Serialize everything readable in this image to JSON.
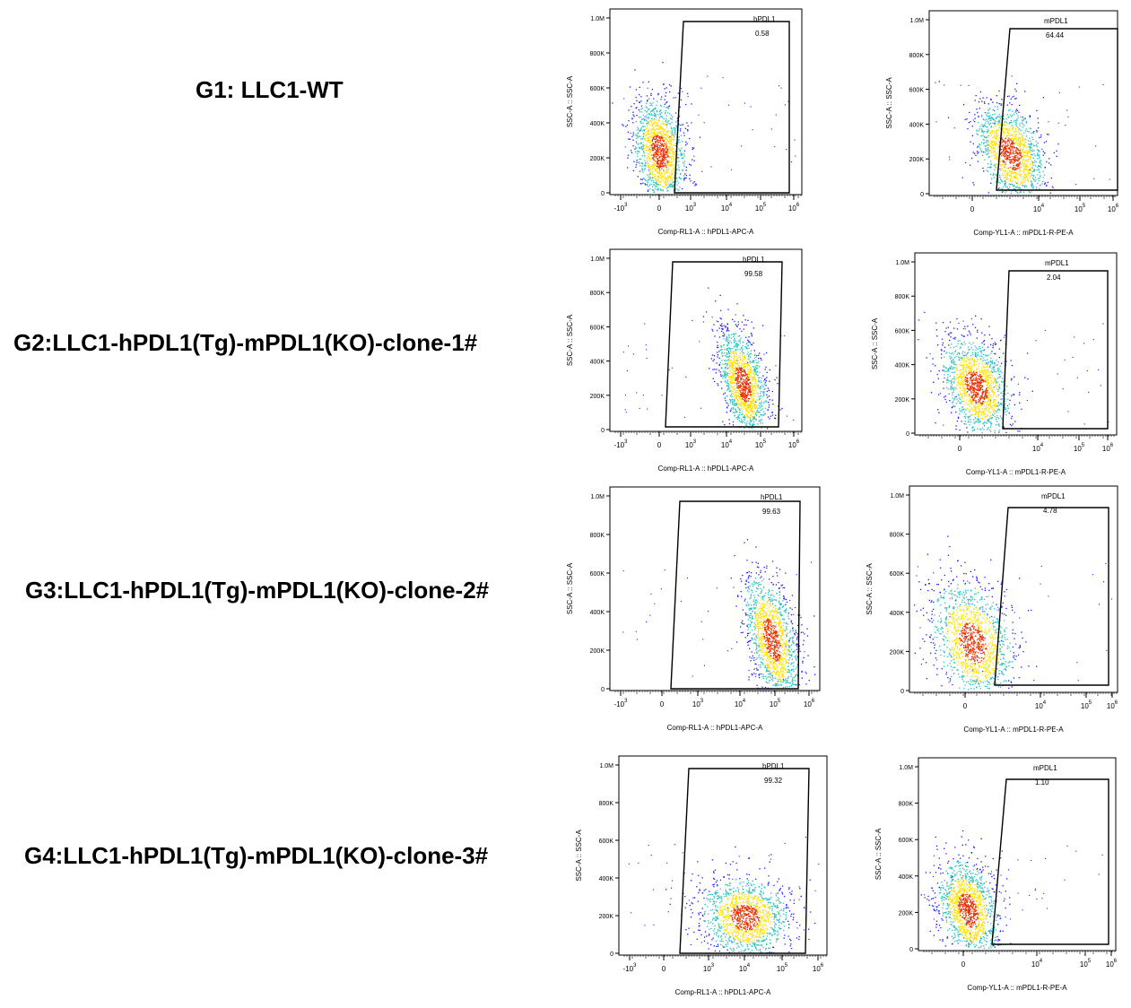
{
  "groups": [
    {
      "label": "G1:  LLC1-WT"
    },
    {
      "label": "G2:LLC1-hPDL1(Tg)-mPDL1(KO)-clone-1#"
    },
    {
      "label": "G3:LLC1-hPDL1(Tg)-mPDL1(KO)-clone-2#"
    },
    {
      "label": "G4:LLC1-hPDL1(Tg)-mPDL1(KO)-clone-3#"
    }
  ],
  "colors": {
    "low": "#1a1aff",
    "mid": "#22c0c0",
    "high": "#ffe000",
    "peak": "#e83000"
  },
  "chart_data": [
    {
      "type": "scatter",
      "group": "G1",
      "gate_name": "hPDL1",
      "gate_value": "0.58",
      "xlabel": "Comp-RL1-A :: hPDL1-APC-A",
      "ylabel": "SSC-A :: SSC-A",
      "yticks": [
        "0",
        "200K",
        "400K",
        "600K",
        "800K",
        "1.0M"
      ],
      "xticks": [
        {
          "b": "-10",
          "e": "3"
        },
        {
          "b": "0",
          "e": ""
        },
        {
          "b": "10",
          "e": "3"
        },
        {
          "b": "10",
          "e": "4"
        },
        {
          "b": "10",
          "e": "5"
        },
        {
          "b": "10",
          "e": "6"
        }
      ],
      "cluster": {
        "x_center": 0.2,
        "y_center": "230K",
        "spread": "low-events around 200K-600K SSC"
      }
    },
    {
      "type": "scatter",
      "group": "G1",
      "gate_name": "mPDL1",
      "gate_value": "64.44",
      "xlabel": "Comp-YL1-A :: mPDL1-R-PE-A",
      "ylabel": "SSC-A :: SSC-A",
      "yticks": [
        "0",
        "200K",
        "400K",
        "600K",
        "800K",
        "1.0M"
      ],
      "xticks": [
        {
          "b": "0",
          "e": ""
        },
        {
          "b": "10",
          "e": "4"
        },
        {
          "b": "10",
          "e": "5"
        },
        {
          "b": "10",
          "e": "6"
        }
      ],
      "cluster": {
        "x_center": "10^3.5",
        "y_center": "240K"
      }
    },
    {
      "type": "scatter",
      "group": "G2",
      "gate_name": "hPDL1",
      "gate_value": "99.58",
      "xlabel": "Comp-RL1-A :: hPDL1-APC-A",
      "ylabel": "SSC-A :: SSC-A",
      "yticks": [
        "0",
        "200K",
        "400K",
        "600K",
        "800K",
        "1.0M"
      ],
      "xticks": [
        {
          "b": "-10",
          "e": "3"
        },
        {
          "b": "0",
          "e": ""
        },
        {
          "b": "10",
          "e": "3"
        },
        {
          "b": "10",
          "e": "4"
        },
        {
          "b": "10",
          "e": "5"
        },
        {
          "b": "10",
          "e": "6"
        }
      ],
      "cluster": {
        "x_center": "10^4.8",
        "y_center": "220K"
      }
    },
    {
      "type": "scatter",
      "group": "G2",
      "gate_name": "mPDL1",
      "gate_value": "2.04",
      "xlabel": "Comp-YL1-A :: mPDL1-R-PE-A",
      "ylabel": "SSC-A :: SSC-A",
      "yticks": [
        "0",
        "200K",
        "400K",
        "600K",
        "800K",
        "1.0M"
      ],
      "xticks": [
        {
          "b": "0",
          "e": ""
        },
        {
          "b": "10",
          "e": "4"
        },
        {
          "b": "10",
          "e": "5"
        },
        {
          "b": "10",
          "e": "6"
        }
      ],
      "cluster": {
        "x_center": "0",
        "y_center": "220K"
      }
    },
    {
      "type": "scatter",
      "group": "G3",
      "gate_name": "hPDL1",
      "gate_value": "99.63",
      "xlabel": "Comp-RL1-A :: hPDL1-APC-A",
      "ylabel": "SSC-A :: SSC-A",
      "yticks": [
        "0",
        "200K",
        "400K",
        "600K",
        "800K",
        "1.0M"
      ],
      "xticks": [
        {
          "b": "-10",
          "e": "3"
        },
        {
          "b": "0",
          "e": ""
        },
        {
          "b": "10",
          "e": "3"
        },
        {
          "b": "10",
          "e": "4"
        },
        {
          "b": "10",
          "e": "5"
        },
        {
          "b": "10",
          "e": "6"
        }
      ],
      "cluster": {
        "x_center": "10^5",
        "y_center": "220K"
      }
    },
    {
      "type": "scatter",
      "group": "G3",
      "gate_name": "mPDL1",
      "gate_value": "4.78",
      "xlabel": "Comp-YL1-A :: mPDL1-R-PE-A",
      "ylabel": "SSC-A :: SSC-A",
      "yticks": [
        "0",
        "200K",
        "400K",
        "600K",
        "800K",
        "1.0M"
      ],
      "xticks": [
        {
          "b": "0",
          "e": ""
        },
        {
          "b": "10",
          "e": "4"
        },
        {
          "b": "10",
          "e": "5"
        },
        {
          "b": "10",
          "e": "6"
        }
      ],
      "cluster": {
        "x_center": "0",
        "y_center": "200K"
      }
    },
    {
      "type": "scatter",
      "group": "G4",
      "gate_name": "hPDL1",
      "gate_value": "99.32",
      "xlabel": "Comp-RL1-A :: hPDL1-APC-A",
      "ylabel": "SSC-A :: SSC-A",
      "yticks": [
        "0",
        "200K",
        "400K",
        "600K",
        "800K",
        "1.0M"
      ],
      "xticks": [
        {
          "b": "-10",
          "e": "3"
        },
        {
          "b": "0",
          "e": ""
        },
        {
          "b": "10",
          "e": "3"
        },
        {
          "b": "10",
          "e": "4"
        },
        {
          "b": "10",
          "e": "5"
        },
        {
          "b": "10",
          "e": "6"
        }
      ],
      "cluster": {
        "x_center": "10^4",
        "y_center": "180K"
      }
    },
    {
      "type": "scatter",
      "group": "G4",
      "gate_name": "mPDL1",
      "gate_value": "1.10",
      "xlabel": "Comp-YL1-A :: mPDL1-R-PE-A",
      "ylabel": "SSC-A :: SSC-A",
      "yticks": [
        "0",
        "200K",
        "400K",
        "600K",
        "800K",
        "1.0M"
      ],
      "xticks": [
        {
          "b": "0",
          "e": ""
        },
        {
          "b": "10",
          "e": "4"
        },
        {
          "b": "10",
          "e": "5"
        },
        {
          "b": "10",
          "e": "6"
        }
      ],
      "cluster": {
        "x_center": "0",
        "y_center": "180K"
      }
    }
  ]
}
